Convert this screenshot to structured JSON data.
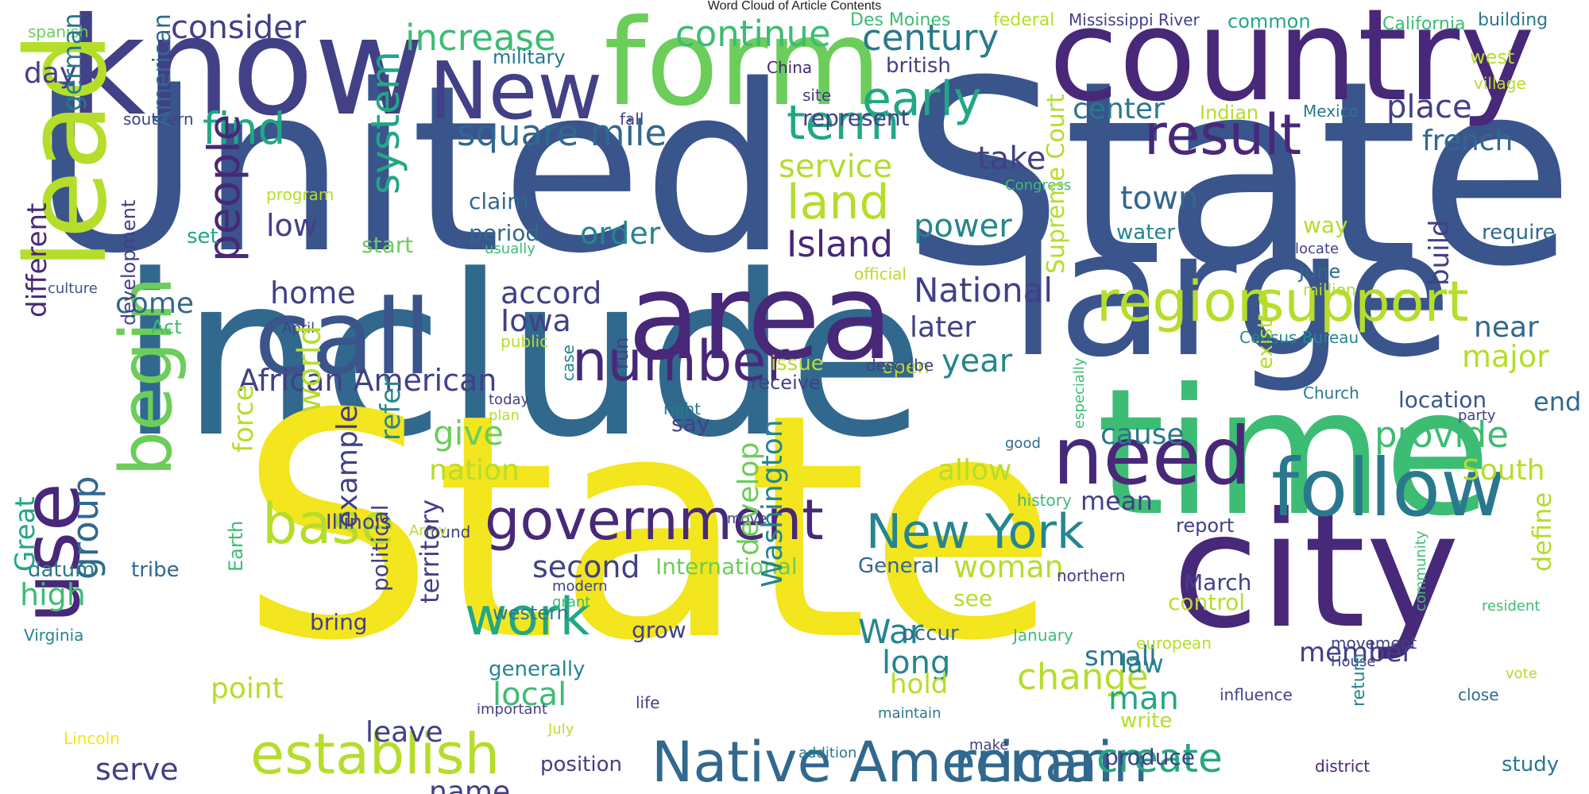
{
  "title": "Word Cloud of Article Contents",
  "palette": {
    "yellow": "#f3e51e",
    "lime": "#b5dd2b",
    "green": "#6ccd5a",
    "teal_green": "#3dbc74",
    "teal": "#22a785",
    "teal_dark": "#1f9a8a",
    "cyan": "#24868e",
    "blue_teal": "#2a788e",
    "blue": "#31688e",
    "blue_dark": "#3a548c",
    "indigo": "#424086",
    "purple": "#482878",
    "dark_purple": "#440154"
  },
  "words": [
    {
      "text": "United",
      "color": "#3a548c"
    },
    {
      "text": "State",
      "color": "#3a548c"
    },
    {
      "text": "include",
      "color": "#31688e"
    },
    {
      "text": "State",
      "color": "#f3e51e"
    },
    {
      "text": "know",
      "color": "#424086"
    },
    {
      "text": "form",
      "color": "#6ccd5a"
    },
    {
      "text": "country",
      "color": "#482878"
    },
    {
      "text": "large",
      "color": "#3a548c"
    },
    {
      "text": "time",
      "color": "#3dbc74"
    },
    {
      "text": "city",
      "color": "#482878"
    },
    {
      "text": "area",
      "color": "#482878"
    },
    {
      "text": "call",
      "color": "#3a548c"
    },
    {
      "text": "lead",
      "color": "#b5dd2b"
    },
    {
      "text": "New",
      "color": "#424086"
    },
    {
      "text": "use",
      "color": "#482878"
    },
    {
      "text": "begin",
      "color": "#6ccd5a"
    },
    {
      "text": "need",
      "color": "#482878"
    },
    {
      "text": "follow",
      "color": "#2a788e"
    },
    {
      "text": "government",
      "color": "#482878"
    },
    {
      "text": "Native American",
      "color": "#31688e"
    },
    {
      "text": "remain",
      "color": "#31688e"
    },
    {
      "text": "establish",
      "color": "#b5dd2b"
    },
    {
      "text": "region",
      "color": "#b5dd2b"
    },
    {
      "text": "support",
      "color": "#b5dd2b"
    },
    {
      "text": "result",
      "color": "#482878"
    },
    {
      "text": "number",
      "color": "#482878"
    },
    {
      "text": "New York",
      "color": "#24868e"
    },
    {
      "text": "system",
      "color": "#22a785"
    },
    {
      "text": "land",
      "color": "#b5dd2b"
    },
    {
      "text": "early",
      "color": "#22a785"
    },
    {
      "text": "term",
      "color": "#22a785"
    },
    {
      "text": "find",
      "color": "#22a785"
    },
    {
      "text": "base",
      "color": "#b5dd2b"
    },
    {
      "text": "work",
      "color": "#22a785"
    },
    {
      "text": "people",
      "color": "#482878"
    },
    {
      "text": "group",
      "color": "#31688e"
    },
    {
      "text": "create",
      "color": "#22a785"
    },
    {
      "text": "increase",
      "color": "#3dbc74"
    },
    {
      "text": "continue",
      "color": "#3dbc74"
    },
    {
      "text": "century",
      "color": "#2a788e"
    },
    {
      "text": "consider",
      "color": "#424086"
    },
    {
      "text": "square mile",
      "color": "#31688e"
    },
    {
      "text": "Island",
      "color": "#482878"
    },
    {
      "text": "provide",
      "color": "#3dbc74"
    },
    {
      "text": "change",
      "color": "#b5dd2b"
    },
    {
      "text": "African American",
      "color": "#424086"
    },
    {
      "text": "National",
      "color": "#424086"
    },
    {
      "text": "place",
      "color": "#424086"
    },
    {
      "text": "french",
      "color": "#31688e"
    },
    {
      "text": "town",
      "color": "#31688e"
    },
    {
      "text": "take",
      "color": "#424086"
    },
    {
      "text": "power",
      "color": "#24868e"
    },
    {
      "text": "center",
      "color": "#2a788e"
    },
    {
      "text": "service",
      "color": "#b5dd2b"
    },
    {
      "text": "order",
      "color": "#24868e"
    },
    {
      "text": "low",
      "color": "#424086"
    },
    {
      "text": "home",
      "color": "#424086"
    },
    {
      "text": "come",
      "color": "#31688e"
    },
    {
      "text": "accord",
      "color": "#424086"
    },
    {
      "text": "Iowa",
      "color": "#424086"
    },
    {
      "text": "give",
      "color": "#6ccd5a"
    },
    {
      "text": "nation",
      "color": "#b5dd2b"
    },
    {
      "text": "year",
      "color": "#24868e"
    },
    {
      "text": "later",
      "color": "#424086"
    },
    {
      "text": "cause",
      "color": "#2a788e"
    },
    {
      "text": "allow",
      "color": "#b5dd2b"
    },
    {
      "text": "mean",
      "color": "#424086"
    },
    {
      "text": "major",
      "color": "#b5dd2b"
    },
    {
      "text": "South",
      "color": "#b5dd2b"
    },
    {
      "text": "near",
      "color": "#31688e"
    },
    {
      "text": "end",
      "color": "#31688e"
    },
    {
      "text": "location",
      "color": "#3a548c"
    },
    {
      "text": "day",
      "color": "#424086"
    },
    {
      "text": "high",
      "color": "#3dbc74"
    },
    {
      "text": "datum",
      "color": "#2a788e"
    },
    {
      "text": "tribe",
      "color": "#31688e"
    },
    {
      "text": "serve",
      "color": "#424086"
    },
    {
      "text": "point",
      "color": "#b5dd2b"
    },
    {
      "text": "leave",
      "color": "#424086"
    },
    {
      "text": "name",
      "color": "#424086"
    },
    {
      "text": "local",
      "color": "#3dbc74"
    },
    {
      "text": "second",
      "color": "#424086"
    },
    {
      "text": "long",
      "color": "#24868e"
    },
    {
      "text": "hold",
      "color": "#b5dd2b"
    },
    {
      "text": "War",
      "color": "#24868e"
    },
    {
      "text": "woman",
      "color": "#b5dd2b"
    },
    {
      "text": "law",
      "color": "#24868e"
    },
    {
      "text": "man",
      "color": "#22a785"
    },
    {
      "text": "small",
      "color": "#2a788e"
    },
    {
      "text": "member",
      "color": "#424086"
    },
    {
      "text": "write",
      "color": "#b5dd2b"
    },
    {
      "text": "produce",
      "color": "#424086"
    },
    {
      "text": "study",
      "color": "#2a788e"
    },
    {
      "text": "control",
      "color": "#b5dd2b"
    },
    {
      "text": "March",
      "color": "#424086"
    },
    {
      "text": "report",
      "color": "#424086"
    },
    {
      "text": "position",
      "color": "#424086"
    },
    {
      "text": "grow",
      "color": "#424086"
    },
    {
      "text": "western",
      "color": "#2a788e"
    },
    {
      "text": "generally",
      "color": "#24868e"
    },
    {
      "text": "bring",
      "color": "#424086"
    },
    {
      "text": "International",
      "color": "#6ccd5a"
    },
    {
      "text": "General",
      "color": "#31688e"
    },
    {
      "text": "occur",
      "color": "#31688e"
    },
    {
      "text": "see",
      "color": "#b5dd2b"
    },
    {
      "text": "claim",
      "color": "#31688e"
    },
    {
      "text": "period",
      "color": "#31688e"
    },
    {
      "text": "set",
      "color": "#22a785"
    },
    {
      "text": "start",
      "color": "#6ccd5a"
    },
    {
      "text": "water",
      "color": "#24868e"
    },
    {
      "text": "require",
      "color": "#31688e"
    },
    {
      "text": "way",
      "color": "#b5dd2b"
    },
    {
      "text": "west",
      "color": "#b5dd2b"
    },
    {
      "text": "represent",
      "color": "#424086"
    },
    {
      "text": "military",
      "color": "#2a788e"
    },
    {
      "text": "british",
      "color": "#424086"
    },
    {
      "text": "common",
      "color": "#22a785"
    },
    {
      "text": "building",
      "color": "#2a788e"
    },
    {
      "text": "receive",
      "color": "#424086"
    },
    {
      "text": "issue",
      "color": "#b5dd2b"
    },
    {
      "text": "open",
      "color": "#b5dd2b"
    },
    {
      "text": "say",
      "color": "#424086"
    },
    {
      "text": "Illinois",
      "color": "#424086"
    },
    {
      "text": "Act",
      "color": "#3dbc74"
    },
    {
      "text": "June",
      "color": "#31688e"
    },
    {
      "text": "Mississippi River",
      "color": "#424086"
    },
    {
      "text": "Des Moines",
      "color": "#3dbc74"
    },
    {
      "text": "federal",
      "color": "#b5dd2b"
    },
    {
      "text": "California",
      "color": "#3dbc74"
    },
    {
      "text": "spanish",
      "color": "#6ccd5a"
    },
    {
      "text": "China",
      "color": "#482878"
    },
    {
      "text": "site",
      "color": "#424086"
    },
    {
      "text": "southern",
      "color": "#424086"
    },
    {
      "text": "fall",
      "color": "#424086"
    },
    {
      "text": "Indian",
      "color": "#b5dd2b"
    },
    {
      "text": "Mexico",
      "color": "#2a788e"
    },
    {
      "text": "village",
      "color": "#b5dd2b"
    },
    {
      "text": "program",
      "color": "#b5dd2b"
    },
    {
      "text": "Congress",
      "color": "#3dbc74"
    },
    {
      "text": "usually",
      "color": "#3dbc74"
    },
    {
      "text": "locate",
      "color": "#424086"
    },
    {
      "text": "official",
      "color": "#b5dd2b"
    },
    {
      "text": "million",
      "color": "#b5dd2b"
    },
    {
      "text": "culture",
      "color": "#3a548c"
    },
    {
      "text": "April",
      "color": "#424086"
    },
    {
      "text": "public",
      "color": "#b5dd2b"
    },
    {
      "text": "Census Bureau",
      "color": "#24868e"
    },
    {
      "text": "describe",
      "color": "#424086"
    },
    {
      "text": "Church",
      "color": "#2a788e"
    },
    {
      "text": "party",
      "color": "#424086"
    },
    {
      "text": "today",
      "color": "#424086"
    },
    {
      "text": "plan",
      "color": "#b5dd2b"
    },
    {
      "text": "right",
      "color": "#2a788e"
    },
    {
      "text": "good",
      "color": "#31688e"
    },
    {
      "text": "history",
      "color": "#3dbc74"
    },
    {
      "text": "found",
      "color": "#424086"
    },
    {
      "text": "move",
      "color": "#424086"
    },
    {
      "text": "Army",
      "color": "#b5dd2b"
    },
    {
      "text": "northern",
      "color": "#424086"
    },
    {
      "text": "modern",
      "color": "#424086"
    },
    {
      "text": "grant",
      "color": "#3dbc74"
    },
    {
      "text": "resident",
      "color": "#3dbc74"
    },
    {
      "text": "Virginia",
      "color": "#24868e"
    },
    {
      "text": "January",
      "color": "#3dbc74"
    },
    {
      "text": "european",
      "color": "#b5dd2b"
    },
    {
      "text": "movement",
      "color": "#424086"
    },
    {
      "text": "House",
      "color": "#424086"
    },
    {
      "text": "vote",
      "color": "#b5dd2b"
    },
    {
      "text": "life",
      "color": "#424086"
    },
    {
      "text": "influence",
      "color": "#424086"
    },
    {
      "text": "close",
      "color": "#31688e"
    },
    {
      "text": "important",
      "color": "#424086"
    },
    {
      "text": "maintain",
      "color": "#2a788e"
    },
    {
      "text": "Lincoln",
      "color": "#f3e51e"
    },
    {
      "text": "July",
      "color": "#b5dd2b"
    },
    {
      "text": "addition",
      "color": "#2a788e"
    },
    {
      "text": "make",
      "color": "#424086"
    },
    {
      "text": "district",
      "color": "#482878"
    },
    {
      "text": "American",
      "color": "#31688e"
    },
    {
      "text": "german",
      "color": "#2a788e"
    },
    {
      "text": "different",
      "color": "#482878"
    },
    {
      "text": "development",
      "color": "#424086"
    },
    {
      "text": "Great",
      "color": "#22a785"
    },
    {
      "text": "Earth",
      "color": "#3dbc74"
    },
    {
      "text": "force",
      "color": "#b5dd2b"
    },
    {
      "text": "world",
      "color": "#b5dd2b"
    },
    {
      "text": "example",
      "color": "#424086"
    },
    {
      "text": "refer",
      "color": "#24868e"
    },
    {
      "text": "political",
      "color": "#424086"
    },
    {
      "text": "territory",
      "color": "#424086"
    },
    {
      "text": "develop",
      "color": "#6ccd5a"
    },
    {
      "text": "Washington",
      "color": "#24868e"
    },
    {
      "text": "run",
      "color": "#424086"
    },
    {
      "text": "case",
      "color": "#24868e"
    },
    {
      "text": "Supreme Court",
      "color": "#b5dd2b"
    },
    {
      "text": "especially",
      "color": "#3dbc74"
    },
    {
      "text": "exist",
      "color": "#b5dd2b"
    },
    {
      "text": "return",
      "color": "#24868e"
    },
    {
      "text": "community",
      "color": "#3dbc74"
    },
    {
      "text": "define",
      "color": "#b5dd2b"
    },
    {
      "text": "build",
      "color": "#424086"
    }
  ]
}
